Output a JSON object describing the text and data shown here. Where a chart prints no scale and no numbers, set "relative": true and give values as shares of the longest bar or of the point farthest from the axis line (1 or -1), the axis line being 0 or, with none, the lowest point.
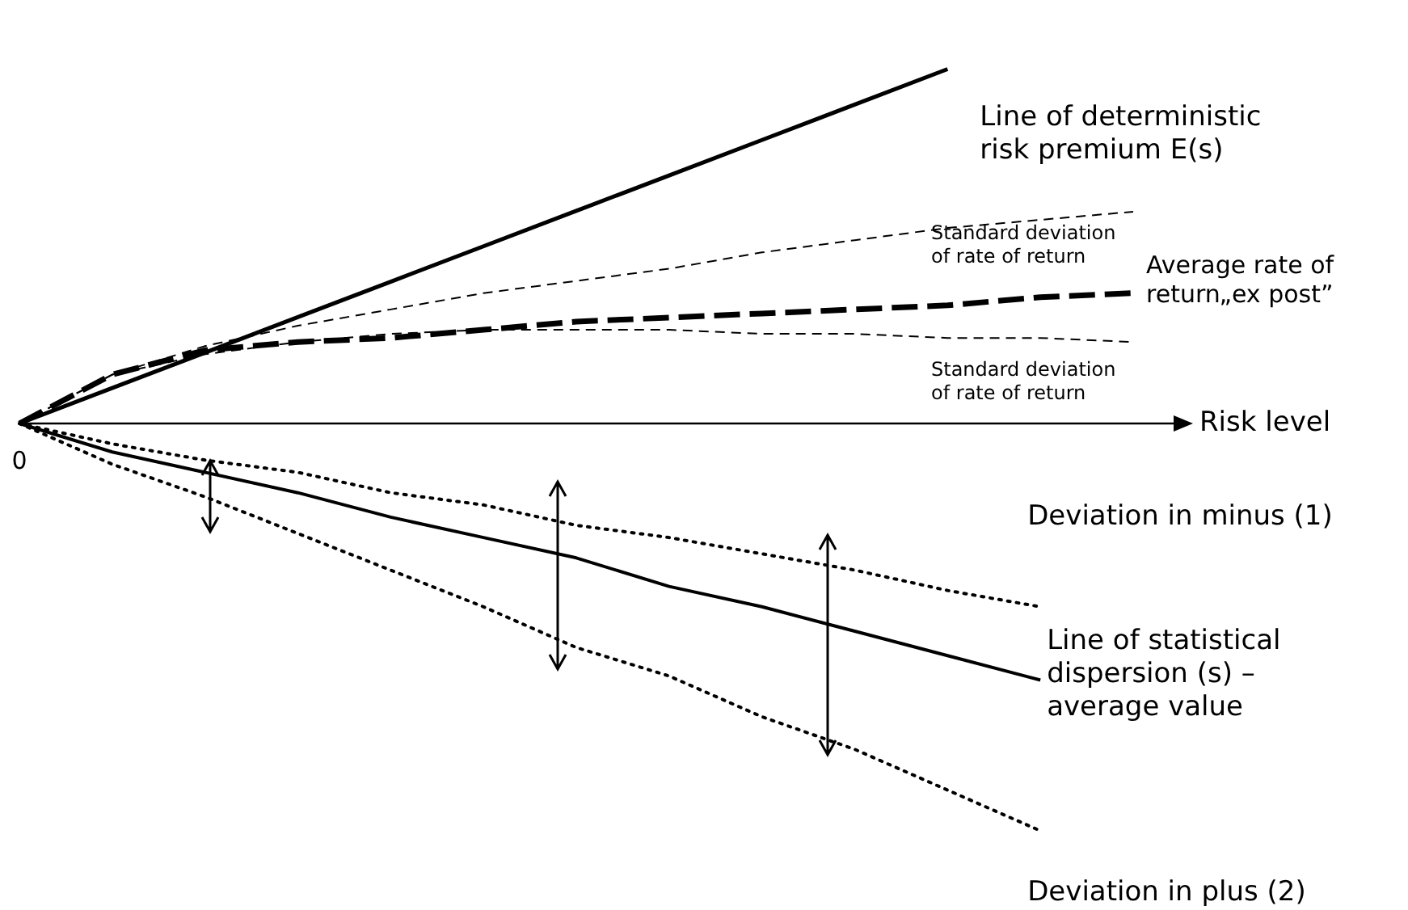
{
  "chart_data": {
    "type": "line",
    "relative": true,
    "xlabel": "Risk level",
    "annotations": [
      "0"
    ],
    "tick_labels": false,
    "marker": "none",
    "categories": [
      null,
      null,
      null,
      null,
      null,
      null,
      null,
      null,
      null,
      null,
      null,
      null,
      null
    ],
    "series": [
      {
        "name": "Line of deterministic risk premium E(s)",
        "color": "#000000",
        "line_style": "solid",
        "values": [
          0,
          0.087,
          0.174,
          0.261,
          0.348,
          0.435,
          0.522,
          0.609,
          0.696,
          0.783,
          0.87,
          null,
          null
        ]
      },
      {
        "name": "Standard deviation of rate of return",
        "color": "#000000",
        "line_style": "dashed",
        "values": [
          0,
          0.12,
          0.19,
          0.24,
          0.28,
          0.32,
          0.35,
          0.38,
          0.42,
          0.45,
          0.48,
          0.5,
          0.52
        ]
      },
      {
        "name": "Average rate of return„ex post”",
        "color": "#000000",
        "line_style": "dashed",
        "values": [
          0,
          0.12,
          0.18,
          0.2,
          0.21,
          0.23,
          0.25,
          0.26,
          0.27,
          0.28,
          0.29,
          0.31,
          0.32
        ]
      },
      {
        "name": "Standard deviation of rate of return",
        "color": "#000000",
        "line_style": "dashed",
        "values": [
          0,
          0.12,
          0.17,
          0.2,
          0.22,
          0.23,
          0.23,
          0.23,
          0.22,
          0.22,
          0.21,
          0.21,
          0.2
        ]
      },
      {
        "name": "Deviation in minus (1)",
        "color": "#000000",
        "line_style": "dotted",
        "values": [
          0,
          -0.05,
          -0.09,
          -0.12,
          -0.17,
          -0.2,
          -0.25,
          -0.28,
          -0.32,
          -0.36,
          -0.41,
          -0.45,
          null
        ]
      },
      {
        "name": "Line of statistical dispersion (s) – average value",
        "color": "#000000",
        "line_style": "solid",
        "values": [
          0,
          -0.07,
          -0.12,
          -0.17,
          -0.23,
          -0.28,
          -0.33,
          -0.4,
          -0.45,
          -0.51,
          -0.57,
          -0.63,
          null
        ]
      },
      {
        "name": "Deviation in plus (2)",
        "color": "#000000",
        "line_style": "dotted",
        "values": [
          0,
          -0.1,
          -0.18,
          -0.27,
          -0.36,
          -0.45,
          -0.55,
          -0.62,
          -0.72,
          -0.8,
          -0.9,
          -1,
          null
        ]
      }
    ]
  }
}
